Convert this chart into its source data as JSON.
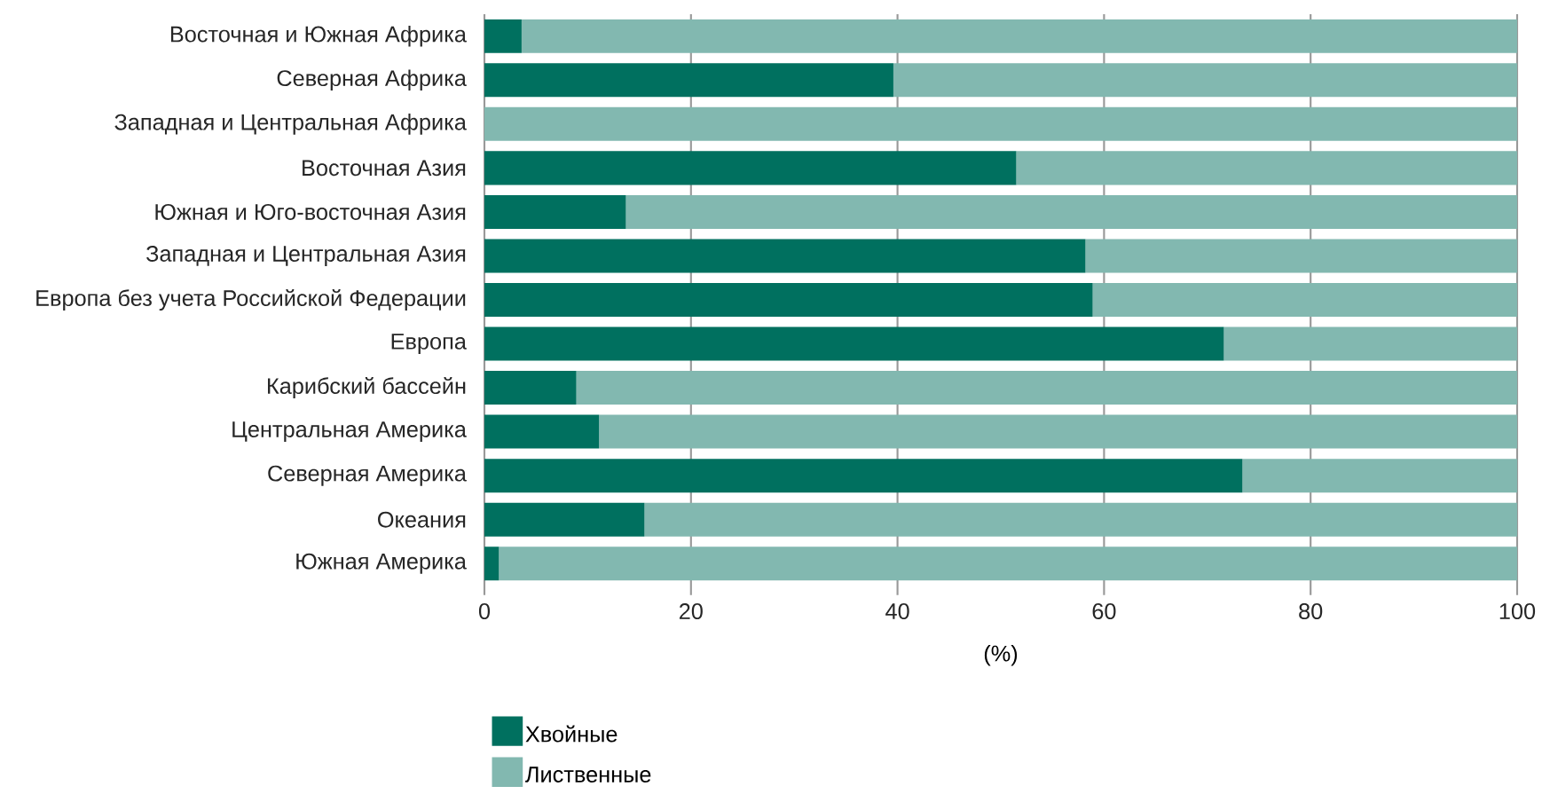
{
  "chart_data": {
    "type": "bar",
    "orientation": "horizontal",
    "stacked": true,
    "xlabel": "(%)",
    "categories": [
      "Восточная и Южная Африка",
      "Северная Африка",
      "Западная и Центральная Африка",
      "Восточная Азия",
      "Южная и Юго-восточная Азия",
      "Западная и Центральная Азия",
      "Европа без учета Российской Федерации",
      "Европа",
      "Карибский бассейн",
      "Центральная Америка",
      "Северная Америка",
      "Океания",
      "Южная Америка"
    ],
    "series": [
      {
        "name": "Хвойные",
        "color": "#00705f",
        "values": [
          3.6,
          39.6,
          0,
          51.5,
          13.7,
          58.2,
          58.9,
          71.6,
          8.9,
          11.1,
          73.4,
          15.5,
          1.4
        ]
      },
      {
        "name": "Лиственные",
        "color": "#82b8b0",
        "values": [
          96.4,
          60.4,
          100,
          48.5,
          86.3,
          41.8,
          41.1,
          28.4,
          91.1,
          88.9,
          26.6,
          84.5,
          98.6
        ]
      }
    ],
    "xlim": [
      0,
      100
    ],
    "xticks": [
      0,
      20,
      40,
      60,
      80,
      100
    ],
    "grid": "x",
    "legend": "bottom left"
  }
}
